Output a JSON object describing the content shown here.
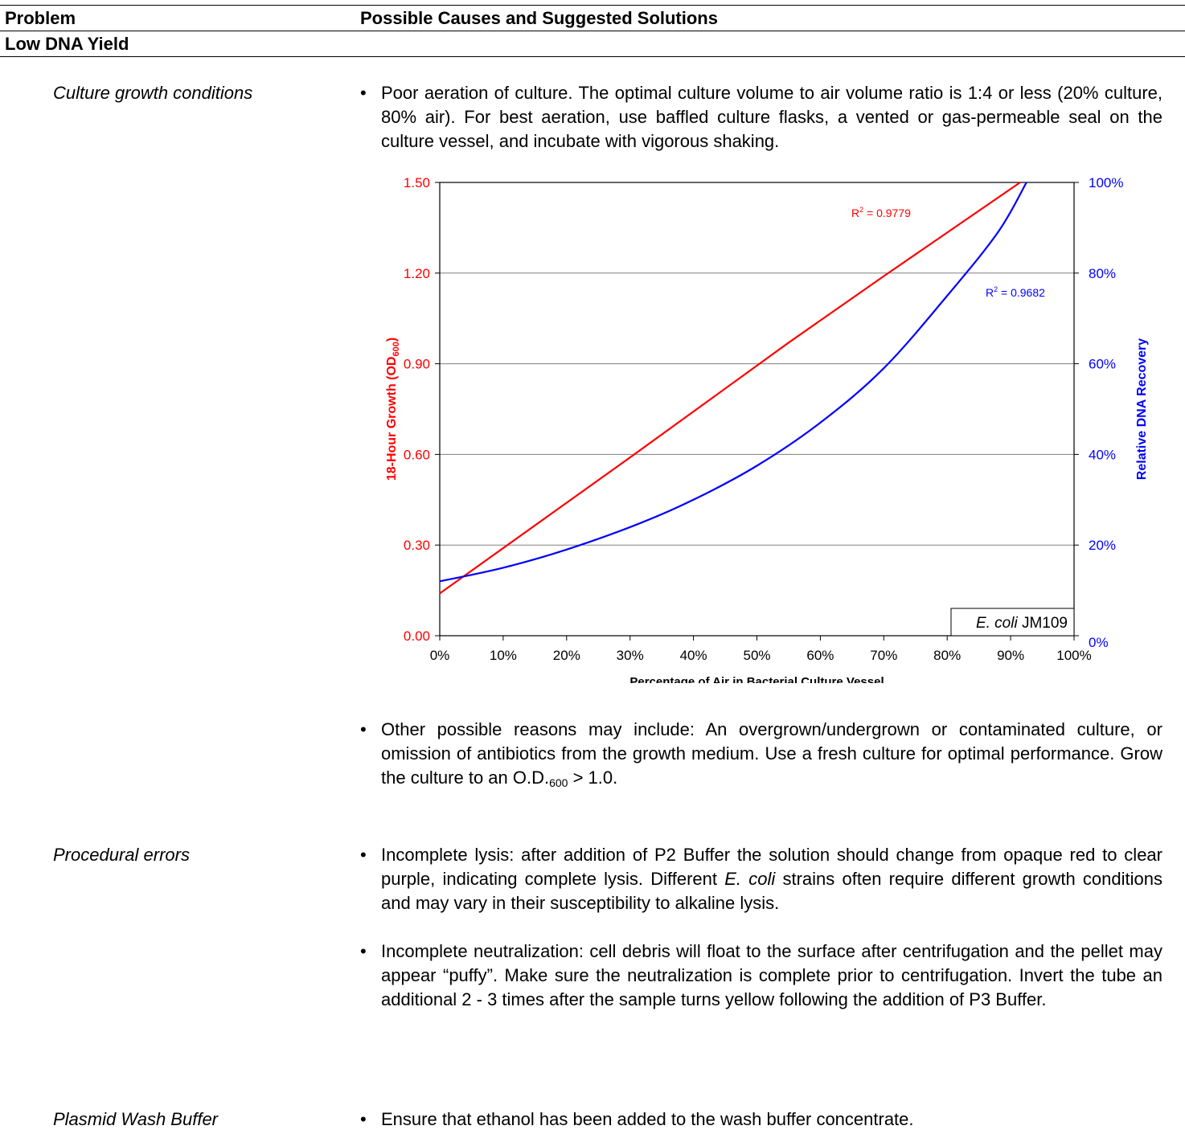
{
  "table_header": {
    "problem_col": "Problem",
    "solution_col": "Possible Causes and Suggested Solutions"
  },
  "section_title": "Low DNA Yield",
  "rows": [
    {
      "label": "Culture growth conditions",
      "bullets": [
        "Poor aeration of culture.  The optimal culture volume to air volume ratio is 1:4 or less (20% culture, 80% air).  For best aeration, use baffled culture flasks, a vented or gas-permeable seal on the culture vessel, and incubate with vigorous shaking.",
        {
          "before": "Other possible reasons may include: An overgrown/undergrown or contaminated culture, or omission of antibiotics from the growth medium.  Use a fresh culture for optimal performance.  Grow the culture to an O.D.",
          "sub": "600",
          "after": " > 1.0."
        }
      ]
    },
    {
      "label": "Procedural errors",
      "bullets": [
        {
          "before": "Incomplete lysis: after addition of P2 Buffer the solution should change from opaque red to clear purple, indicating complete lysis.  Different ",
          "italic": "E. coli",
          "after": " strains often require different growth conditions and may vary in their susceptibility to alkaline lysis."
        },
        "Incomplete neutralization: cell debris will float to the surface after centrifugation and the pellet may appear “puffy”.  Make sure the neutralization is complete prior to centrifugation.  Invert the tube an additional 2 - 3 times after the sample turns yellow following the addition of P3 Buffer."
      ]
    },
    {
      "label": "Plasmid Wash Buffer",
      "bullets": [
        "Ensure that ethanol has been added to the wash buffer concentrate."
      ]
    }
  ],
  "bullet_glyph": "•",
  "chart_data": {
    "type": "line",
    "xlabel": "Percentage of Air in Bacterial Culture Vessel",
    "ylabel_left": {
      "text": "18-Hour Growth (OD",
      "sub": "600",
      "close": ")"
    },
    "ylabel_right": "Relative DNA Recovery",
    "x_ticks": [
      "0%",
      "10%",
      "20%",
      "30%",
      "40%",
      "50%",
      "60%",
      "70%",
      "80%",
      "90%",
      "100%"
    ],
    "y_left_ticks": [
      "0.00",
      "0.30",
      "0.60",
      "0.90",
      "1.20",
      "1.50"
    ],
    "y_right_ticks": [
      "0%",
      "20%",
      "40%",
      "60%",
      "80%",
      "100%"
    ],
    "xlim": [
      0,
      100
    ],
    "ylim_left": [
      0,
      1.5
    ],
    "ylim_right": [
      0,
      100
    ],
    "grid": "horizontal",
    "annotation": {
      "italic": "E. coli",
      "normal": " JM109"
    },
    "series": [
      {
        "axis": "left",
        "color": "#ff0000",
        "r2_label": "R",
        "r2_value": " = 0.9779",
        "x": [
          0,
          15,
          30,
          55,
          70,
          91.5
        ],
        "y": [
          0.14,
          0.365,
          0.59,
          0.97,
          1.19,
          1.5
        ]
      },
      {
        "axis": "right",
        "color": "#0000ff",
        "r2_label": "R",
        "r2_value": " = 0.9682",
        "x": [
          0,
          10,
          20,
          31,
          40,
          50,
          60,
          70,
          80,
          88,
          92.5
        ],
        "y": [
          12,
          15,
          19,
          24.5,
          30,
          37.5,
          47,
          59,
          75,
          89,
          100
        ]
      }
    ]
  }
}
